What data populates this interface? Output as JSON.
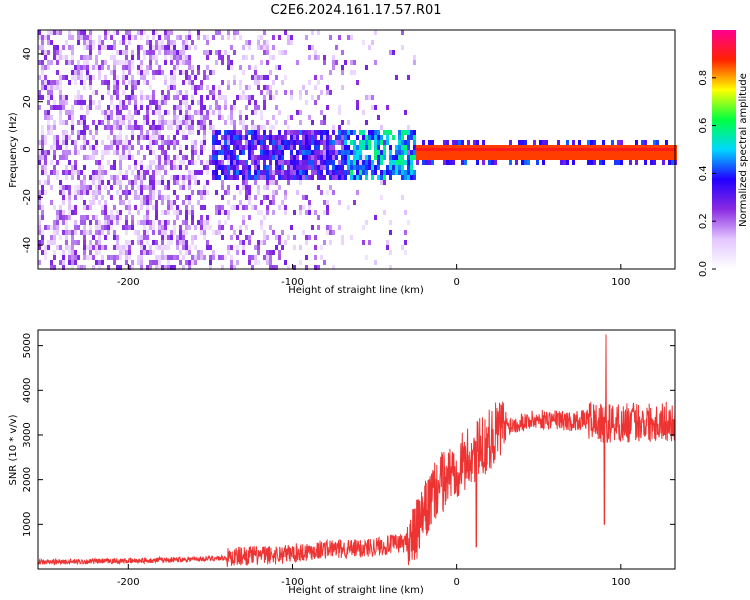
{
  "title": "C2E6.2024.161.17.57.R01",
  "chart_data": [
    {
      "type": "heatmap",
      "xlabel": "Height of straight line (km)",
      "ylabel": "Frequency (Hz)",
      "xlim": [
        -255,
        133
      ],
      "ylim": [
        -50,
        50
      ],
      "xticks": [
        -200,
        -100,
        0,
        100
      ],
      "yticks": [
        -40,
        -20,
        0,
        20,
        40
      ],
      "colorbar": {
        "label": "Normalized spectral amplitude",
        "range": [
          0,
          1
        ],
        "ticks": [
          "0.0",
          "0.2",
          "0.4",
          "0.6",
          "0.8"
        ],
        "colors": [
          "#ffffff",
          "#e3c6ff",
          "#8a2be2",
          "#2200ff",
          "#00d8ff",
          "#00ff40",
          "#ffff00",
          "#ff2200",
          "#ff0090"
        ]
      },
      "features": [
        {
          "name": "broadband noise",
          "x_range": [
            -255,
            -25
          ],
          "freq_range": [
            -50,
            50
          ],
          "amplitude": 0.15
        },
        {
          "name": "central band",
          "x_range": [
            -150,
            -25
          ],
          "freq_range": [
            -12,
            10
          ],
          "amplitude": 0.3
        },
        {
          "name": "narrow line",
          "x_range": [
            -25,
            133
          ],
          "freq": 0,
          "amplitude": 0.85
        }
      ]
    },
    {
      "type": "line",
      "xlabel": "Height of straight line (km)",
      "ylabel": "SNR (10 * v/v)",
      "xlim": [
        -255,
        133
      ],
      "ylim": [
        0,
        5350
      ],
      "xticks": [
        -200,
        -100,
        0,
        100
      ],
      "yticks": [
        1000,
        2000,
        3000,
        4000,
        5000
      ],
      "color": "#ee3333",
      "x": [
        -255,
        -240,
        -220,
        -200,
        -180,
        -160,
        -140,
        -130,
        -120,
        -110,
        -100,
        -90,
        -80,
        -70,
        -60,
        -50,
        -40,
        -30,
        -25,
        -20,
        -15,
        -10,
        -5,
        0,
        5,
        10,
        15,
        20,
        25,
        30,
        40,
        50,
        60,
        70,
        80,
        85,
        90,
        95,
        100,
        110,
        120,
        133
      ],
      "y": [
        150,
        160,
        170,
        180,
        200,
        220,
        250,
        300,
        300,
        320,
        350,
        400,
        450,
        450,
        450,
        500,
        550,
        600,
        800,
        1200,
        1600,
        1900,
        2100,
        2300,
        2400,
        2600,
        2700,
        2900,
        3100,
        3200,
        3300,
        3350,
        3350,
        3300,
        3350,
        3300,
        3200,
        3300,
        3250,
        3300,
        3300,
        3300
      ],
      "peaks": [
        {
          "x": 91,
          "y": 5250
        },
        {
          "x": 90,
          "y": 1000
        },
        {
          "x": 12,
          "y": 500
        }
      ]
    }
  ]
}
